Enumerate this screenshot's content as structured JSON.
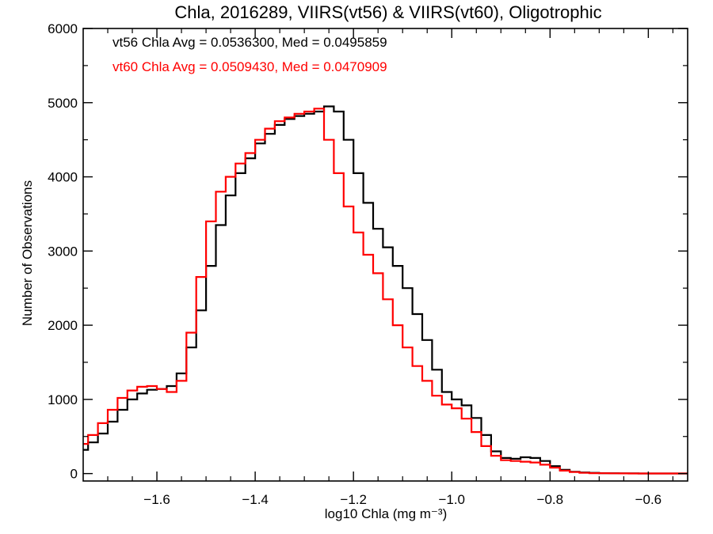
{
  "chart_data": {
    "type": "line",
    "title": "Chla, 2016289, VIIRS(vt56) & VIIRS(vt60), Oligotrophic",
    "xlabel": "log10 Chla (mg m⁻³)",
    "ylabel": "Number of Observations",
    "xlim": [
      -1.75,
      -0.52
    ],
    "ylim": [
      -100,
      6000
    ],
    "x_ticks": [
      -1.6,
      -1.4,
      -1.2,
      -1.0,
      -0.8,
      -0.6
    ],
    "x_tick_labels": [
      "−1.6",
      "−1.4",
      "−1.2",
      "−1.0",
      "−0.8",
      "−0.6"
    ],
    "y_ticks": [
      0,
      1000,
      2000,
      3000,
      4000,
      5000,
      6000
    ],
    "y_tick_labels": [
      "0",
      "1000",
      "2000",
      "3000",
      "4000",
      "5000",
      "6000"
    ],
    "grid": false,
    "step": true,
    "annotations": [
      {
        "text": "vt56 Chla Avg = 0.0536300, Med = 0.0495859",
        "color": "#000000"
      },
      {
        "text": "vt60 Chla Avg = 0.0509430, Med = 0.0470909",
        "color": "#ff0000"
      }
    ],
    "series": [
      {
        "color": "#000000",
        "x": [
          -1.75,
          -1.73,
          -1.71,
          -1.69,
          -1.67,
          -1.65,
          -1.63,
          -1.61,
          -1.59,
          -1.57,
          -1.55,
          -1.53,
          -1.51,
          -1.49,
          -1.47,
          -1.45,
          -1.43,
          -1.41,
          -1.39,
          -1.37,
          -1.35,
          -1.33,
          -1.31,
          -1.29,
          -1.27,
          -1.25,
          -1.23,
          -1.21,
          -1.19,
          -1.17,
          -1.15,
          -1.13,
          -1.11,
          -1.09,
          -1.07,
          -1.05,
          -1.03,
          -1.01,
          -0.99,
          -0.97,
          -0.95,
          -0.93,
          -0.91,
          -0.89,
          -0.87,
          -0.85,
          -0.83,
          -0.81,
          -0.79,
          -0.77,
          -0.75,
          -0.73,
          -0.71,
          -0.69,
          -0.67,
          -0.65,
          -0.63,
          -0.61,
          -0.59,
          -0.57,
          -0.55,
          -0.53
        ],
        "values": [
          320,
          420,
          540,
          700,
          860,
          1000,
          1080,
          1130,
          1140,
          1180,
          1350,
          1700,
          2200,
          2800,
          3350,
          3750,
          4050,
          4250,
          4450,
          4580,
          4700,
          4780,
          4820,
          4850,
          4880,
          4950,
          4880,
          4500,
          4050,
          3650,
          3300,
          3050,
          2800,
          2500,
          2150,
          1800,
          1400,
          1100,
          1000,
          920,
          750,
          520,
          300,
          210,
          200,
          220,
          210,
          170,
          100,
          50,
          25,
          15,
          10,
          6,
          4,
          3,
          2,
          1,
          1,
          1,
          1,
          1
        ]
      },
      {
        "color": "#ff0000",
        "x": [
          -1.75,
          -1.73,
          -1.71,
          -1.69,
          -1.67,
          -1.65,
          -1.63,
          -1.61,
          -1.59,
          -1.57,
          -1.55,
          -1.53,
          -1.51,
          -1.49,
          -1.47,
          -1.45,
          -1.43,
          -1.41,
          -1.39,
          -1.37,
          -1.35,
          -1.33,
          -1.31,
          -1.29,
          -1.27,
          -1.25,
          -1.23,
          -1.21,
          -1.19,
          -1.17,
          -1.15,
          -1.13,
          -1.11,
          -1.09,
          -1.07,
          -1.05,
          -1.03,
          -1.01,
          -0.99,
          -0.97,
          -0.95,
          -0.93,
          -0.91,
          -0.89,
          -0.87,
          -0.85,
          -0.83,
          -0.81,
          -0.79,
          -0.77,
          -0.75,
          -0.73,
          -0.71,
          -0.69,
          -0.67,
          -0.65,
          -0.63,
          -0.61,
          -0.59,
          -0.57,
          -0.55,
          -0.53
        ],
        "values": [
          400,
          520,
          680,
          860,
          1020,
          1120,
          1170,
          1180,
          1140,
          1100,
          1250,
          1900,
          2650,
          3400,
          3800,
          4000,
          4180,
          4320,
          4500,
          4650,
          4750,
          4800,
          4850,
          4880,
          4920,
          4500,
          4050,
          3600,
          3250,
          2950,
          2700,
          2350,
          2000,
          1700,
          1450,
          1250,
          1050,
          930,
          880,
          740,
          560,
          370,
          240,
          180,
          170,
          160,
          150,
          120,
          80,
          40,
          20,
          10,
          6,
          4,
          3,
          2,
          1,
          1,
          1,
          1,
          1,
          1
        ]
      }
    ]
  }
}
